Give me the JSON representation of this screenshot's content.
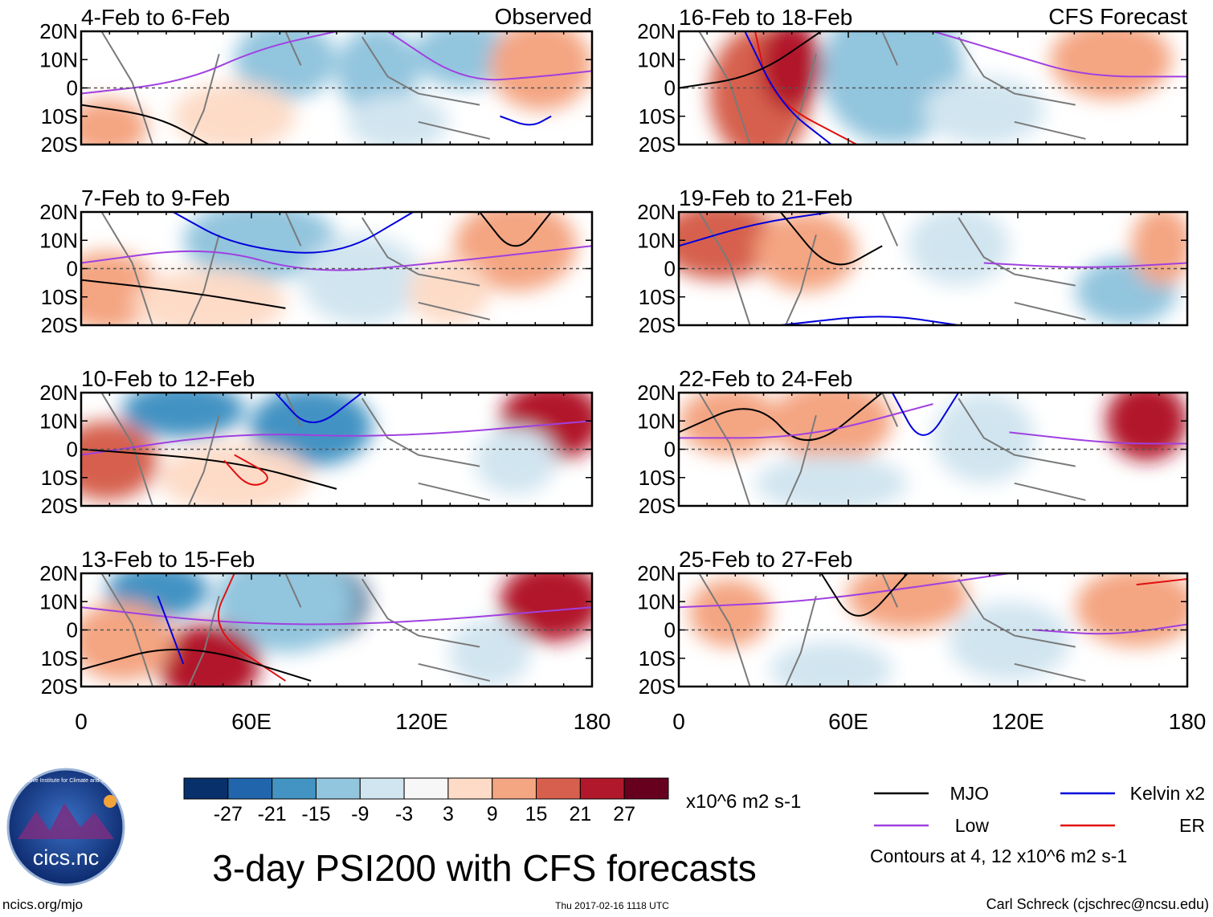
{
  "figure": {
    "title": "3-day PSI200 with CFS forecasts",
    "column_labels": {
      "observed": "Observed",
      "forecast": "CFS Forecast"
    },
    "observed_panels": [
      "4-Feb to 6-Feb",
      "7-Feb to 9-Feb",
      "10-Feb to 12-Feb",
      "13-Feb to 15-Feb"
    ],
    "forecast_panels": [
      "16-Feb to 18-Feb",
      "19-Feb to 21-Feb",
      "22-Feb to 24-Feb",
      "25-Feb to 27-Feb"
    ],
    "lat_labels": [
      "20N",
      "10N",
      "0",
      "10S",
      "20S"
    ],
    "lon_labels": [
      "0",
      "60E",
      "120E",
      "180"
    ]
  },
  "colorbar": {
    "unit": "x10^6 m2 s-1",
    "tick_labels": [
      "-27",
      "-21",
      "-15",
      "-9",
      "-3",
      "3",
      "9",
      "15",
      "21",
      "27"
    ],
    "colors": [
      "#08306b",
      "#2166ac",
      "#4393c3",
      "#92c5de",
      "#d1e5f0",
      "#f7f7f7",
      "#fddbc7",
      "#f4a582",
      "#d6604d",
      "#b2182b",
      "#67001f"
    ]
  },
  "legend": {
    "items": [
      {
        "label": "MJO",
        "color": "#000000"
      },
      {
        "label": "Kelvin x2",
        "color": "#0000dd"
      },
      {
        "label": "Low",
        "color": "#a040e0"
      },
      {
        "label": "ER",
        "color": "#e01010"
      }
    ],
    "note": "Contours at 4, 12 x10^6 m2 s-1"
  },
  "logo": {
    "text": "cics.nc",
    "ring_text": "Cooperative Institute for Climate and Satellites"
  },
  "footer": {
    "url": "ncics.org/mjo",
    "timestamp": "Thu 2017-02-16 1118 UTC",
    "author": "Carl Schreck (cjschrec@ncsu.edu)"
  }
}
